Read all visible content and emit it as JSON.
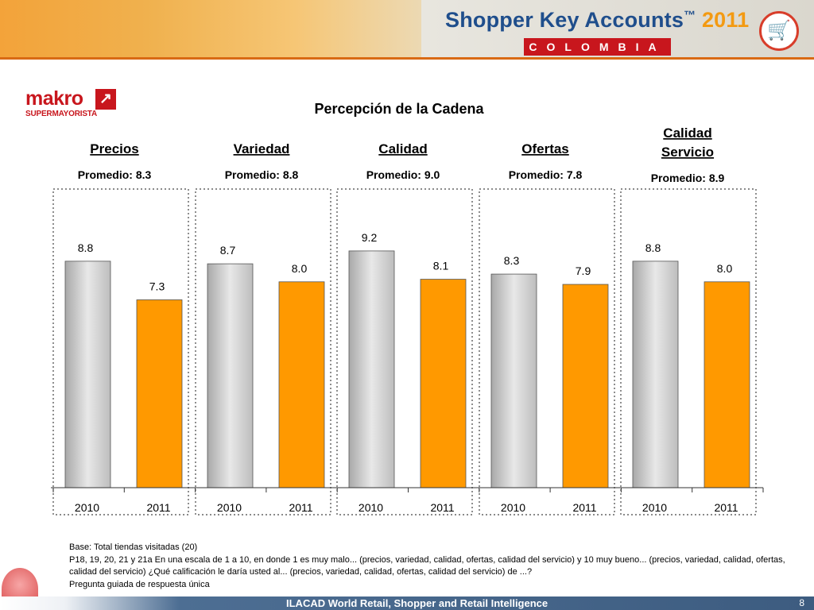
{
  "header": {
    "brand": "Shopper Key Accounts",
    "brand_tm": "™",
    "brand_year": "2011",
    "country": "COLOMBIA",
    "cart_icon": "shopping-cart-icon"
  },
  "logo": {
    "name": "makro",
    "sub": "SUPERMAYORISTA",
    "arrow_icon": "arrow-up-right-icon"
  },
  "chart_data": {
    "type": "bar",
    "title": "Percepción de la Cadena",
    "ylim": [
      0,
      10
    ],
    "grid": false,
    "years": [
      "2010",
      "2011"
    ],
    "colors": {
      "2010": "#c8c8c8",
      "2011": "#ff9900"
    },
    "groups": [
      {
        "name": "Precios",
        "average": "Promedio: 8.3",
        "values": [
          8.8,
          7.3
        ]
      },
      {
        "name": "Variedad",
        "average": "Promedio: 8.8",
        "values": [
          8.7,
          8.0
        ]
      },
      {
        "name": "Calidad",
        "average": "Promedio: 9.0",
        "values": [
          9.2,
          8.1
        ]
      },
      {
        "name": "Ofertas",
        "average": "Promedio: 7.8",
        "values": [
          8.3,
          7.9
        ]
      },
      {
        "name": "Calidad Servicio",
        "average": "Promedio: 8.9",
        "values": [
          8.8,
          8.0
        ]
      }
    ]
  },
  "footnote": {
    "base": "Base: Total tiendas visitadas  (20)",
    "question": "P18, 19, 20, 21 y 21a En una escala de 1 a 10, en donde 1 es muy malo... (precios, variedad, calidad, ofertas, calidad del servicio)  y 10 muy bueno...  (precios, variedad, calidad, ofertas, calidad del servicio) ¿Qué calificación le daría usted al... (precios, variedad, calidad, ofertas, calidad del servicio) de ...?",
    "guide": "Pregunta guiada de respuesta única"
  },
  "footer": {
    "text": "ILACAD World Retail, Shopper and Retail Intelligence",
    "page": "8"
  }
}
